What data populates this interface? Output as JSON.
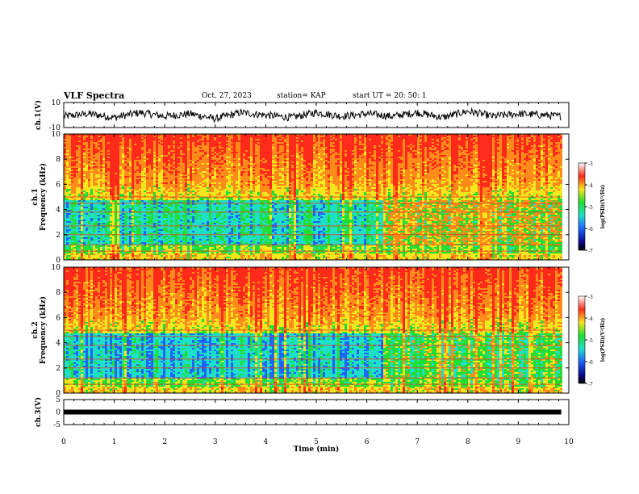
{
  "header": {
    "title": "VLF Spectra",
    "date": "Oct. 27, 2023",
    "station": "station= KAP",
    "start_ut": "start UT =  20: 50: 1"
  },
  "chart_data": [
    {
      "type": "line",
      "panel": "ch1-waveform",
      "ylabel": "ch.1(V)",
      "ylim": [
        -10,
        10
      ],
      "ytick_labels": [
        "10",
        "-10"
      ],
      "x": [
        0,
        0.5,
        1,
        1.5,
        2,
        2.5,
        3,
        3.5,
        4,
        4.5,
        5,
        5.5,
        6,
        6.5,
        7,
        7.5,
        8,
        8.5,
        9,
        9.5,
        9.85
      ],
      "values": [
        -1,
        1,
        -2,
        2,
        -1,
        1,
        -3,
        2,
        0,
        -2,
        2,
        -1,
        1,
        -1,
        2,
        -2,
        3,
        -1,
        1,
        0,
        -1
      ],
      "note_style": "noisy waveform"
    },
    {
      "type": "heatmap",
      "panel": "ch1-spectrogram",
      "ylabel": "ch.1 Frequency (kHz)",
      "ylim": [
        0,
        10
      ],
      "ytick_labels": [
        "0",
        "2",
        "4",
        "6",
        "8",
        "10"
      ],
      "xlim": [
        0,
        10
      ],
      "colorbar": {
        "label": "log(PSD)(V²/Hz)",
        "range": [
          -7,
          -3
        ],
        "tick_labels": [
          "-3",
          "-4",
          "-5",
          "-6",
          "-7"
        ]
      },
      "data_end_min": 9.85,
      "regime_change_min": 6.3
    },
    {
      "type": "heatmap",
      "panel": "ch2-spectrogram",
      "ylabel": "ch.2 Frequency (kHz)",
      "ylim": [
        0,
        10
      ],
      "ytick_labels": [
        "0",
        "2",
        "4",
        "6",
        "8",
        "10"
      ],
      "xlim": [
        0,
        10
      ],
      "colorbar": {
        "label": "log(PSD)(V²/Hz)",
        "range": [
          -7,
          -3
        ],
        "tick_labels": [
          "-3",
          "-4",
          "-5",
          "-6",
          "-7"
        ]
      },
      "data_end_min": 9.85,
      "regime_change_min": 6.3
    },
    {
      "type": "line",
      "panel": "ch3-waveform",
      "ylabel": "ch.3(V)",
      "ylim": [
        -5,
        5
      ],
      "ytick_labels": [
        "5",
        "0",
        "-5"
      ],
      "x": [
        0,
        9.85
      ],
      "values": [
        0,
        0
      ],
      "xlabel": "Time (min)",
      "xlim": [
        0,
        10
      ],
      "xtick_labels": [
        "0",
        "1",
        "2",
        "3",
        "4",
        "5",
        "6",
        "7",
        "8",
        "9",
        "10"
      ]
    }
  ],
  "colors": {
    "high": "#ff2a1a",
    "orange": "#ff8c1a",
    "yellow": "#f5e61e",
    "green": "#22dd33",
    "cyan": "#1ee0c8",
    "blue": "#1e64ff",
    "navy": "#0a0a8c"
  }
}
